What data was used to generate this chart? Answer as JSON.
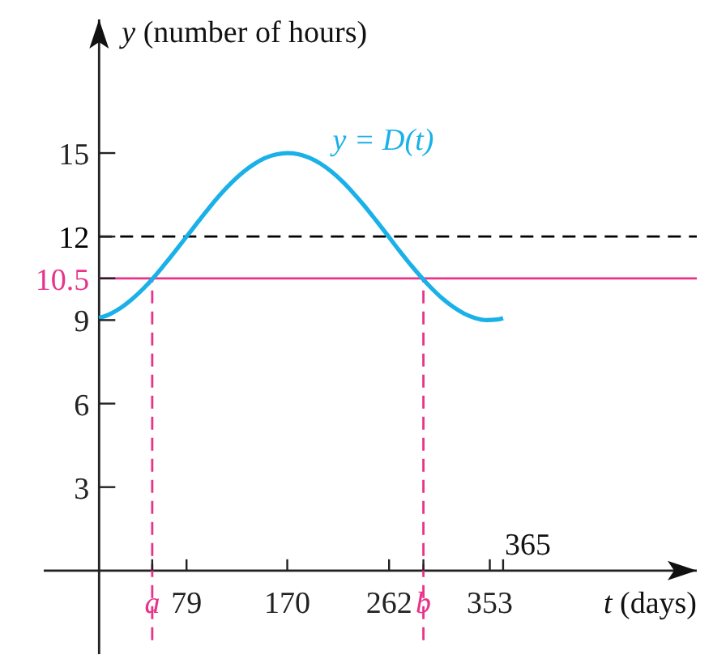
{
  "chart_data": {
    "type": "line",
    "ylabel": "y (number of hours)",
    "xlabel": "t (days)",
    "x": [
      0,
      10,
      20,
      30,
      40,
      50,
      60,
      70,
      80,
      90,
      100,
      110,
      120,
      130,
      140,
      150,
      160,
      170,
      180,
      190,
      200,
      210,
      220,
      230,
      240,
      250,
      260,
      270,
      280,
      290,
      300,
      310,
      320,
      330,
      340,
      350,
      360,
      365
    ],
    "series": [
      {
        "name": "y = D(t)",
        "color": "#1ab0e8",
        "values": [
          9.07,
          9.22,
          9.45,
          9.76,
          10.13,
          10.56,
          11.04,
          11.54,
          12.05,
          12.56,
          13.06,
          13.53,
          13.95,
          14.31,
          14.6,
          14.82,
          14.95,
          15.0,
          14.96,
          14.83,
          14.62,
          14.33,
          13.97,
          13.55,
          13.09,
          12.59,
          12.08,
          11.56,
          11.06,
          10.59,
          10.16,
          9.78,
          9.47,
          9.23,
          9.07,
          9.0,
          9.02,
          9.07
        ]
      }
    ],
    "xlim": [
      -50,
      540
    ],
    "ylim": [
      -3,
      19.8
    ],
    "xticks": [
      {
        "value": 48,
        "label": "a"
      },
      79,
      170,
      262,
      {
        "value": 293,
        "label": "b"
      },
      353,
      {
        "value": 365,
        "label": null
      }
    ],
    "annotations": [
      "365"
    ],
    "grid": false,
    "legend": false,
    "yticks": [
      3,
      6,
      9,
      {
        "value": 10.5,
        "label": "10.5"
      },
      12,
      15
    ],
    "ref_lines": [
      {
        "axis": "y",
        "value": 12,
        "color": "#000000",
        "line_style": "dashed"
      },
      {
        "axis": "y",
        "value": 10.5,
        "color": "#e8338a",
        "line_style": "solid"
      },
      {
        "axis": "x",
        "value": 48,
        "color": "#e8338a",
        "line_style": "dashed"
      },
      {
        "axis": "x",
        "value": 293,
        "color": "#e8338a",
        "line_style": "dashed"
      }
    ],
    "marker": "none",
    "line_style": "solid"
  }
}
